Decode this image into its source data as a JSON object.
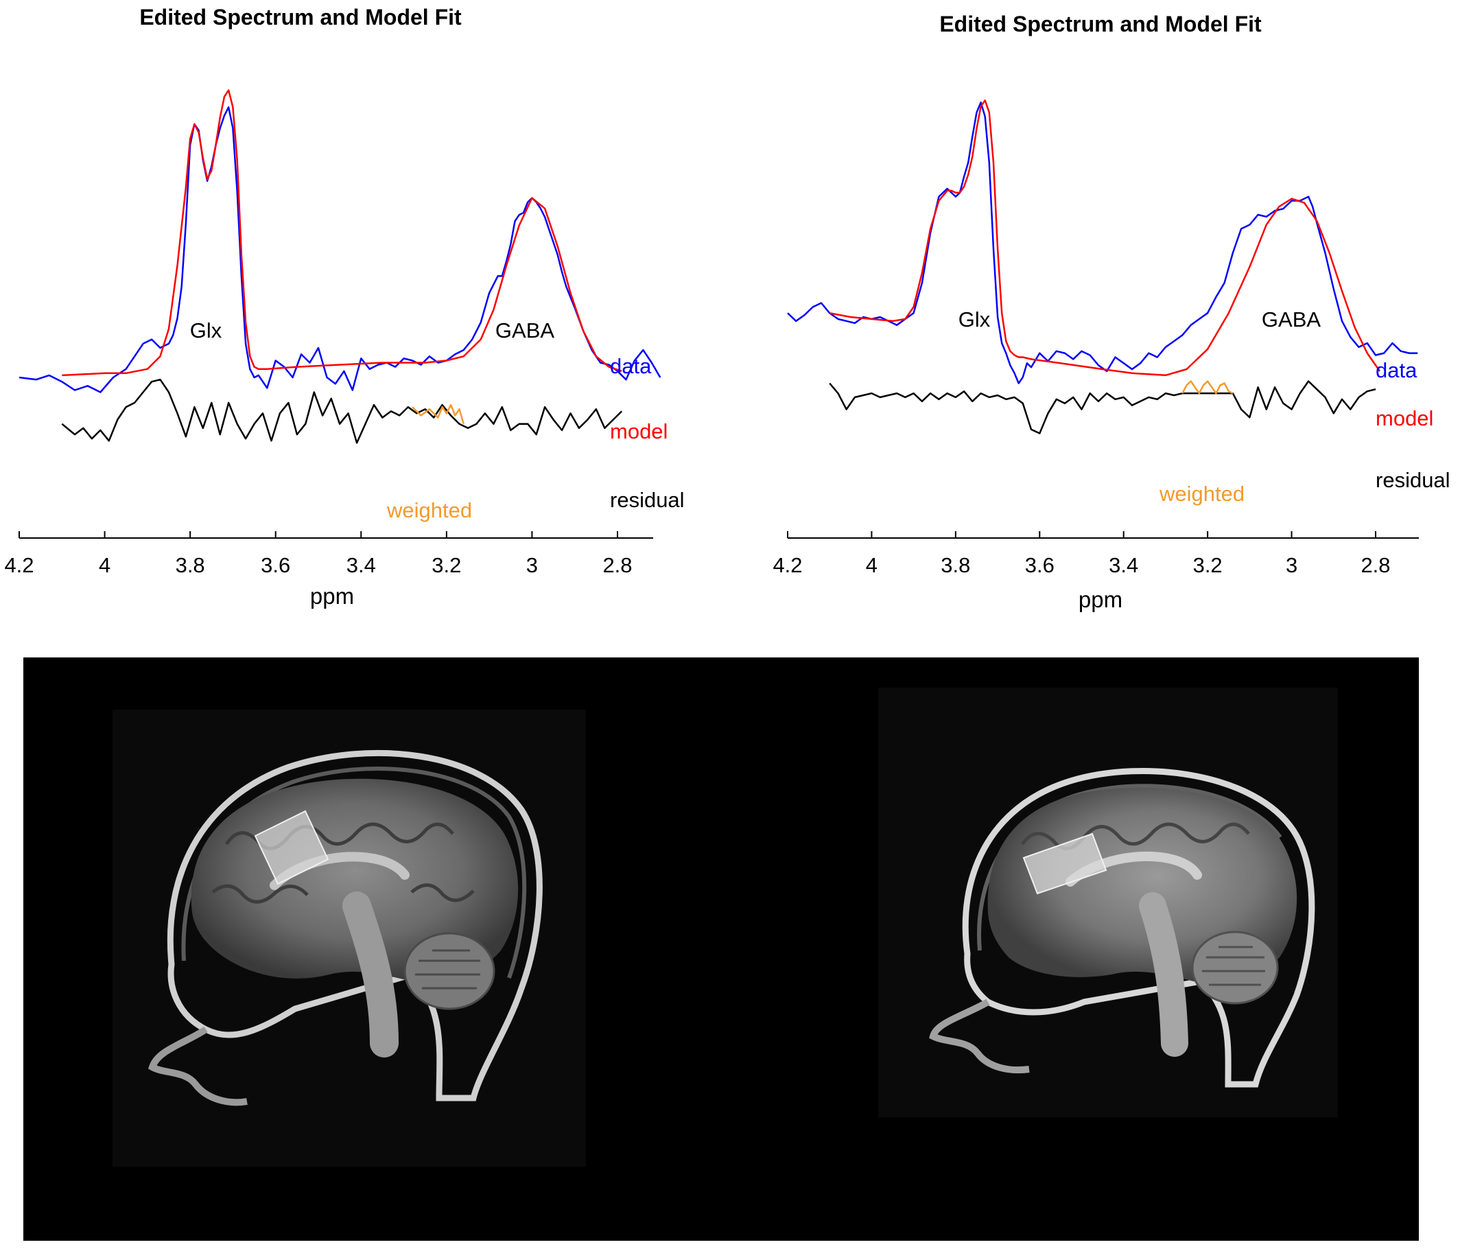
{
  "colors": {
    "data": "#0000ff",
    "model": "#ff0000",
    "residual": "#000000",
    "weighted": "#f39a2c",
    "mri_background": "#000000"
  },
  "mri_images": [
    {
      "view": "sagittal T1 MRI with shaded voxel",
      "icon": "brain-mri-image"
    },
    {
      "view": "sagittal T1 MRI with shaded voxel",
      "icon": "brain-mri-image"
    }
  ],
  "chart_data": [
    {
      "type": "line",
      "title": "Edited Spectrum and Model Fit",
      "xlabel": "ppm",
      "ylabel": "",
      "x_reversed": true,
      "xlim": [
        4.2,
        2.7
      ],
      "ylim": [
        -0.5,
        1.45
      ],
      "xticks": [
        4.2,
        4,
        3.8,
        3.6,
        3.4,
        3.2,
        3,
        2.8
      ],
      "xtick_labels": [
        "4.2",
        "4",
        "3.8",
        "3.6",
        "3.4",
        "3.2",
        "3",
        "2.8"
      ],
      "grid": false,
      "annotations": [
        {
          "text": "Glx",
          "x": 3.76,
          "y": 0.42
        },
        {
          "text": "GABA",
          "x": 3.0,
          "y": 0.42
        }
      ],
      "legend_labels": {
        "data": "data",
        "model": "model",
        "residual": "residual",
        "weighted": "weighted"
      },
      "series": [
        {
          "name": "data",
          "x": [
            4.2,
            4.16,
            4.13,
            4.1,
            4.07,
            4.04,
            4.01,
            3.98,
            3.95,
            3.93,
            3.91,
            3.89,
            3.87,
            3.85,
            3.84,
            3.83,
            3.82,
            3.81,
            3.8,
            3.79,
            3.78,
            3.77,
            3.76,
            3.75,
            3.74,
            3.73,
            3.72,
            3.71,
            3.7,
            3.69,
            3.68,
            3.67,
            3.66,
            3.65,
            3.64,
            3.62,
            3.6,
            3.58,
            3.56,
            3.54,
            3.52,
            3.5,
            3.48,
            3.46,
            3.44,
            3.42,
            3.4,
            3.38,
            3.36,
            3.34,
            3.32,
            3.3,
            3.28,
            3.26,
            3.24,
            3.22,
            3.2,
            3.18,
            3.16,
            3.14,
            3.12,
            3.1,
            3.08,
            3.07,
            3.06,
            3.05,
            3.04,
            3.03,
            3.02,
            3.01,
            3.0,
            2.99,
            2.98,
            2.97,
            2.96,
            2.95,
            2.94,
            2.93,
            2.92,
            2.9,
            2.88,
            2.86,
            2.84,
            2.82,
            2.8,
            2.78,
            2.76,
            2.74,
            2.72,
            2.7
          ],
          "y": [
            0.02,
            0.01,
            0.03,
            0.0,
            -0.04,
            -0.02,
            -0.05,
            0.02,
            0.06,
            0.12,
            0.18,
            0.2,
            0.16,
            0.18,
            0.22,
            0.3,
            0.45,
            0.75,
            1.12,
            1.22,
            1.19,
            1.05,
            0.95,
            1.02,
            1.12,
            1.2,
            1.26,
            1.3,
            1.2,
            0.9,
            0.5,
            0.18,
            0.06,
            0.02,
            0.03,
            -0.03,
            0.1,
            0.07,
            0.02,
            0.13,
            0.09,
            0.16,
            0.02,
            -0.01,
            0.05,
            -0.04,
            0.11,
            0.06,
            0.08,
            0.09,
            0.07,
            0.11,
            0.1,
            0.08,
            0.12,
            0.09,
            0.1,
            0.13,
            0.15,
            0.2,
            0.28,
            0.42,
            0.5,
            0.5,
            0.57,
            0.65,
            0.76,
            0.79,
            0.8,
            0.85,
            0.87,
            0.85,
            0.82,
            0.78,
            0.72,
            0.66,
            0.6,
            0.52,
            0.45,
            0.35,
            0.24,
            0.15,
            0.09,
            0.08,
            0.05,
            0.01,
            0.1,
            0.15,
            0.09,
            0.02
          ]
        },
        {
          "name": "model",
          "x": [
            4.1,
            4.0,
            3.95,
            3.9,
            3.87,
            3.85,
            3.83,
            3.81,
            3.8,
            3.79,
            3.78,
            3.77,
            3.76,
            3.75,
            3.74,
            3.73,
            3.72,
            3.71,
            3.7,
            3.69,
            3.68,
            3.67,
            3.66,
            3.65,
            3.64,
            3.62,
            3.55,
            3.45,
            3.35,
            3.25,
            3.2,
            3.16,
            3.12,
            3.09,
            3.06,
            3.03,
            3.0,
            2.97,
            2.94,
            2.91,
            2.88,
            2.85,
            2.82,
            2.79
          ],
          "y": [
            0.03,
            0.04,
            0.04,
            0.06,
            0.12,
            0.25,
            0.55,
            0.92,
            1.15,
            1.22,
            1.18,
            1.06,
            0.96,
            1.0,
            1.12,
            1.25,
            1.35,
            1.38,
            1.3,
            1.05,
            0.6,
            0.28,
            0.12,
            0.07,
            0.06,
            0.06,
            0.07,
            0.08,
            0.09,
            0.09,
            0.1,
            0.12,
            0.2,
            0.34,
            0.55,
            0.74,
            0.87,
            0.82,
            0.64,
            0.42,
            0.24,
            0.12,
            0.07,
            0.05
          ]
        },
        {
          "name": "residual",
          "x": [
            4.1,
            4.07,
            4.05,
            4.03,
            4.01,
            3.99,
            3.97,
            3.95,
            3.93,
            3.91,
            3.89,
            3.87,
            3.85,
            3.83,
            3.81,
            3.79,
            3.77,
            3.75,
            3.73,
            3.71,
            3.69,
            3.67,
            3.65,
            3.63,
            3.61,
            3.59,
            3.57,
            3.55,
            3.53,
            3.51,
            3.49,
            3.47,
            3.45,
            3.43,
            3.41,
            3.39,
            3.37,
            3.35,
            3.33,
            3.31,
            3.29,
            3.27,
            3.25,
            3.23,
            3.21,
            3.19,
            3.17,
            3.15,
            3.13,
            3.11,
            3.09,
            3.07,
            3.05,
            3.03,
            3.01,
            2.99,
            2.97,
            2.95,
            2.93,
            2.91,
            2.89,
            2.87,
            2.85,
            2.83,
            2.81,
            2.79
          ],
          "y": [
            -0.2,
            -0.25,
            -0.22,
            -0.27,
            -0.23,
            -0.28,
            -0.18,
            -0.12,
            -0.1,
            -0.05,
            0.0,
            0.01,
            -0.05,
            -0.15,
            -0.26,
            -0.12,
            -0.22,
            -0.1,
            -0.25,
            -0.1,
            -0.2,
            -0.27,
            -0.2,
            -0.15,
            -0.28,
            -0.15,
            -0.1,
            -0.25,
            -0.2,
            -0.05,
            -0.16,
            -0.08,
            -0.2,
            -0.15,
            -0.29,
            -0.2,
            -0.11,
            -0.17,
            -0.14,
            -0.16,
            -0.12,
            -0.15,
            -0.13,
            -0.17,
            -0.11,
            -0.16,
            -0.2,
            -0.22,
            -0.2,
            -0.15,
            -0.2,
            -0.12,
            -0.23,
            -0.2,
            -0.2,
            -0.25,
            -0.12,
            -0.18,
            -0.23,
            -0.15,
            -0.22,
            -0.18,
            -0.13,
            -0.22,
            -0.18,
            -0.14
          ]
        },
        {
          "name": "weighted",
          "x": [
            3.28,
            3.26,
            3.24,
            3.22,
            3.21,
            3.2,
            3.19,
            3.18,
            3.17,
            3.16
          ],
          "y": [
            -0.12,
            -0.16,
            -0.13,
            -0.17,
            -0.12,
            -0.15,
            -0.11,
            -0.16,
            -0.13,
            -0.2
          ]
        }
      ]
    },
    {
      "type": "line",
      "title": "Edited Spectrum and Model Fit",
      "xlabel": "ppm",
      "ylabel": "",
      "x_reversed": true,
      "xlim": [
        4.2,
        2.7
      ],
      "ylim": [
        -0.5,
        1.45
      ],
      "xticks": [
        4.2,
        4,
        3.8,
        3.6,
        3.4,
        3.2,
        3,
        2.8
      ],
      "xtick_labels": [
        "4.2",
        "4",
        "3.8",
        "3.6",
        "3.4",
        "3.2",
        "3",
        "2.8"
      ],
      "grid": false,
      "annotations": [
        {
          "text": "Glx",
          "x": 3.74,
          "y": 0.45
        },
        {
          "text": "GABA",
          "x": 3.0,
          "y": 0.45
        }
      ],
      "legend_labels": {
        "data": "data",
        "model": "model",
        "residual": "residual",
        "weighted": "weighted"
      },
      "series": [
        {
          "name": "data",
          "x": [
            4.2,
            4.18,
            4.16,
            4.14,
            4.12,
            4.1,
            4.08,
            4.06,
            4.04,
            4.02,
            4.0,
            3.98,
            3.96,
            3.94,
            3.92,
            3.9,
            3.88,
            3.86,
            3.84,
            3.82,
            3.8,
            3.79,
            3.78,
            3.77,
            3.76,
            3.75,
            3.74,
            3.73,
            3.72,
            3.71,
            3.7,
            3.69,
            3.68,
            3.67,
            3.66,
            3.65,
            3.64,
            3.63,
            3.62,
            3.6,
            3.58,
            3.56,
            3.54,
            3.52,
            3.5,
            3.48,
            3.46,
            3.44,
            3.42,
            3.4,
            3.38,
            3.36,
            3.34,
            3.32,
            3.3,
            3.28,
            3.26,
            3.24,
            3.22,
            3.2,
            3.18,
            3.16,
            3.14,
            3.12,
            3.1,
            3.08,
            3.06,
            3.04,
            3.02,
            3.0,
            2.98,
            2.96,
            2.95,
            2.94,
            2.92,
            2.9,
            2.88,
            2.86,
            2.84,
            2.82,
            2.8,
            2.78,
            2.76,
            2.74,
            2.72,
            2.7
          ],
          "y": [
            0.3,
            0.26,
            0.29,
            0.33,
            0.35,
            0.3,
            0.27,
            0.26,
            0.25,
            0.28,
            0.27,
            0.28,
            0.26,
            0.24,
            0.27,
            0.3,
            0.45,
            0.7,
            0.88,
            0.92,
            0.88,
            0.9,
            0.98,
            1.05,
            1.18,
            1.3,
            1.35,
            1.28,
            1.05,
            0.62,
            0.28,
            0.15,
            0.1,
            0.04,
            0.0,
            -0.05,
            -0.02,
            0.05,
            0.03,
            0.1,
            0.06,
            0.11,
            0.1,
            0.07,
            0.11,
            0.09,
            0.04,
            0.01,
            0.08,
            0.05,
            0.02,
            0.05,
            0.1,
            0.08,
            0.13,
            0.16,
            0.19,
            0.24,
            0.27,
            0.3,
            0.38,
            0.45,
            0.6,
            0.72,
            0.74,
            0.79,
            0.78,
            0.81,
            0.82,
            0.86,
            0.86,
            0.88,
            0.83,
            0.75,
            0.6,
            0.42,
            0.26,
            0.18,
            0.13,
            0.15,
            0.09,
            0.1,
            0.15,
            0.11,
            0.1,
            0.1
          ]
        },
        {
          "name": "model",
          "x": [
            4.1,
            4.05,
            4.0,
            3.95,
            3.92,
            3.9,
            3.88,
            3.86,
            3.84,
            3.82,
            3.81,
            3.8,
            3.79,
            3.78,
            3.77,
            3.76,
            3.75,
            3.74,
            3.73,
            3.72,
            3.71,
            3.7,
            3.69,
            3.68,
            3.67,
            3.66,
            3.65,
            3.64,
            3.62,
            3.55,
            3.45,
            3.38,
            3.3,
            3.25,
            3.2,
            3.15,
            3.1,
            3.06,
            3.03,
            3.0,
            2.97,
            2.94,
            2.91,
            2.88,
            2.85,
            2.82,
            2.79
          ],
          "y": [
            0.3,
            0.28,
            0.27,
            0.26,
            0.27,
            0.33,
            0.5,
            0.72,
            0.86,
            0.91,
            0.91,
            0.9,
            0.9,
            0.93,
            0.99,
            1.08,
            1.22,
            1.33,
            1.36,
            1.3,
            1.05,
            0.62,
            0.3,
            0.16,
            0.11,
            0.09,
            0.08,
            0.08,
            0.07,
            0.05,
            0.02,
            0.0,
            -0.01,
            0.02,
            0.12,
            0.3,
            0.53,
            0.74,
            0.83,
            0.87,
            0.85,
            0.76,
            0.6,
            0.41,
            0.23,
            0.1,
            0.01
          ]
        },
        {
          "name": "residual",
          "x": [
            4.1,
            4.08,
            4.06,
            4.04,
            4.02,
            4.0,
            3.98,
            3.96,
            3.94,
            3.92,
            3.9,
            3.88,
            3.86,
            3.84,
            3.82,
            3.8,
            3.78,
            3.76,
            3.74,
            3.72,
            3.7,
            3.68,
            3.66,
            3.64,
            3.62,
            3.6,
            3.58,
            3.56,
            3.54,
            3.52,
            3.5,
            3.48,
            3.46,
            3.44,
            3.42,
            3.4,
            3.38,
            3.36,
            3.34,
            3.32,
            3.3,
            3.28,
            3.26,
            3.14,
            3.12,
            3.1,
            3.08,
            3.06,
            3.04,
            3.02,
            3.0,
            2.98,
            2.96,
            2.94,
            2.92,
            2.9,
            2.88,
            2.86,
            2.84,
            2.82,
            2.8
          ],
          "y": [
            -0.05,
            -0.1,
            -0.18,
            -0.12,
            -0.11,
            -0.1,
            -0.12,
            -0.11,
            -0.1,
            -0.12,
            -0.1,
            -0.14,
            -0.1,
            -0.13,
            -0.1,
            -0.12,
            -0.09,
            -0.14,
            -0.1,
            -0.12,
            -0.11,
            -0.13,
            -0.12,
            -0.15,
            -0.28,
            -0.3,
            -0.2,
            -0.13,
            -0.15,
            -0.12,
            -0.18,
            -0.1,
            -0.14,
            -0.1,
            -0.13,
            -0.12,
            -0.16,
            -0.14,
            -0.12,
            -0.13,
            -0.1,
            -0.11,
            -0.1,
            -0.1,
            -0.18,
            -0.22,
            -0.07,
            -0.18,
            -0.07,
            -0.15,
            -0.18,
            -0.1,
            -0.04,
            -0.08,
            -0.12,
            -0.2,
            -0.13,
            -0.18,
            -0.12,
            -0.09,
            -0.08
          ]
        },
        {
          "name": "weighted",
          "x": [
            3.26,
            3.25,
            3.24,
            3.23,
            3.22,
            3.21,
            3.2,
            3.19,
            3.18,
            3.17,
            3.16,
            3.15,
            3.14
          ],
          "y": [
            -0.1,
            -0.06,
            -0.04,
            -0.07,
            -0.1,
            -0.06,
            -0.04,
            -0.07,
            -0.1,
            -0.06,
            -0.05,
            -0.09,
            -0.1
          ]
        }
      ]
    }
  ]
}
